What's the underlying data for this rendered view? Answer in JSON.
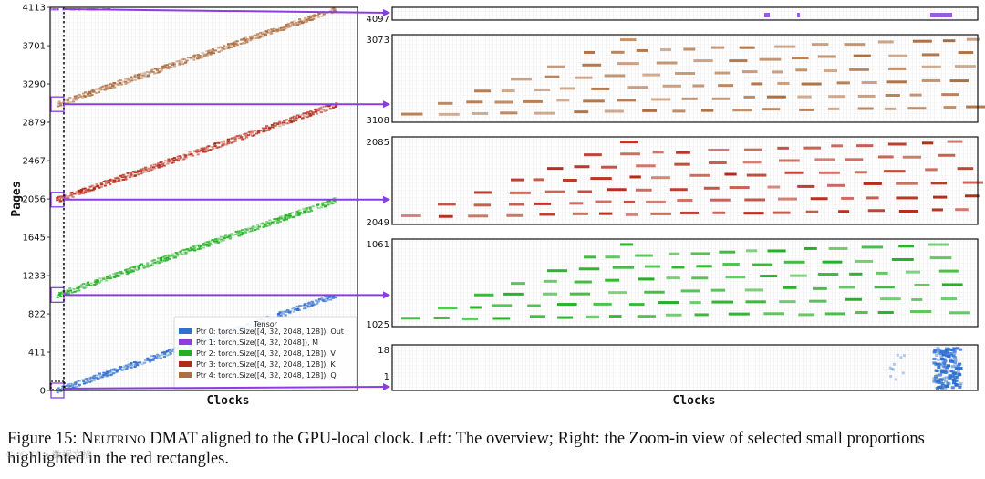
{
  "chart_data": [
    {
      "type": "heatmap",
      "panel": "overview",
      "xlabel": "Clocks",
      "ylabel": "Pages",
      "ylim": [
        0,
        4113
      ],
      "yticks": [
        "0",
        "411",
        "822",
        "1233",
        "1645",
        "2056",
        "2467",
        "2879",
        "3290",
        "3701",
        "4113"
      ],
      "grid": true,
      "legend": {
        "title": "Tensor",
        "placement": "bottom-right",
        "entries": [
          "Ptr 0: torch.Size([4, 32, 2048, 128]), Out",
          "Ptr 1: torch.Size([4, 32, 2048]), M",
          "Ptr 2: torch.Size([4, 32, 2048, 128]), V",
          "Ptr 3: torch.Size([4, 32, 2048, 128]), K",
          "Ptr 4: torch.Size([4, 32, 2048, 128]), Q"
        ]
      },
      "series": [
        {
          "name": "Out",
          "color": "#2f6fcf",
          "x_frac": [
            0.02,
            0.93
          ],
          "pages": [
            0,
            1025
          ]
        },
        {
          "name": "M",
          "color": "#8a3ee0",
          "x_frac": [
            0.0,
            0.2
          ],
          "pages": [
            4097,
            4113
          ]
        },
        {
          "name": "V",
          "color": "#22b022",
          "x_frac": [
            0.02,
            0.93
          ],
          "pages": [
            1025,
            2049
          ]
        },
        {
          "name": "K",
          "color": "#b52a18",
          "x_frac": [
            0.02,
            0.93
          ],
          "pages": [
            2049,
            3073
          ]
        },
        {
          "name": "Q",
          "color": "#ad6e3f",
          "x_frac": [
            0.02,
            0.93
          ],
          "pages": [
            3073,
            4097
          ]
        }
      ]
    },
    {
      "type": "heatmap",
      "panel": "zoom-M",
      "yticks": [
        "4097"
      ],
      "color": "#8a3ee0"
    },
    {
      "type": "heatmap",
      "panel": "zoom-Q",
      "yticks": [
        "3073",
        "3108"
      ],
      "color": "#ad6e3f"
    },
    {
      "type": "heatmap",
      "panel": "zoom-K",
      "yticks": [
        "2085",
        "2049"
      ],
      "color": "#b52a18"
    },
    {
      "type": "heatmap",
      "panel": "zoom-V",
      "yticks": [
        "1061",
        "1025"
      ],
      "color": "#22b022"
    },
    {
      "type": "heatmap",
      "panel": "zoom-Out",
      "yticks": [
        "18",
        "1"
      ],
      "xlabel": "Clocks",
      "color": "#2f6fcf"
    }
  ],
  "caption": {
    "prefix": "Figure 15: ",
    "name": "Neutrino",
    "text": " DMAT aligned to the GPU-local clock. Left: The overview; Right: the Zoom-in view of selected small proportions highlighted in the red rectangles."
  },
  "watermark": "© ©© 大数据文摘"
}
